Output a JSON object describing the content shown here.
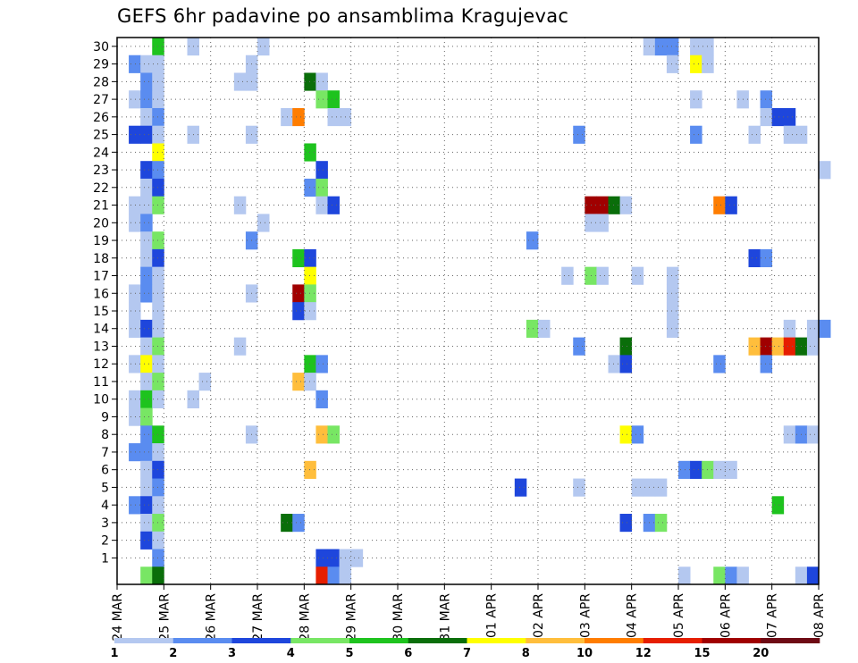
{
  "chart_data": {
    "type": "heatmap",
    "title": "GEFS 6hr padavine po ansamblima Kragujevac",
    "xlabel": "",
    "ylabel": "",
    "x_tick_labels": [
      "24 MAR",
      "25 MAR",
      "26 MAR",
      "27 MAR",
      "28 MAR",
      "29 MAR",
      "30 MAR",
      "31 MAR",
      "01 APR",
      "02 APR",
      "03 APR",
      "04 APR",
      "05 APR",
      "06 APR",
      "07 APR",
      "08 APR"
    ],
    "x_range_steps": [
      0,
      60
    ],
    "y_tick_labels": [
      "1",
      "2",
      "3",
      "4",
      "5",
      "6",
      "7",
      "8",
      "9",
      "10",
      "11",
      "12",
      "13",
      "14",
      "15",
      "16",
      "17",
      "18",
      "19",
      "20",
      "21",
      "22",
      "23",
      "24",
      "25",
      "26",
      "27",
      "28",
      "29",
      "30"
    ],
    "y_range": [
      -0.5,
      30.5
    ],
    "grid": true,
    "colorbar": {
      "tick_labels": [
        "1",
        "2",
        "3",
        "4",
        "5",
        "6",
        "7",
        "8",
        "10",
        "12",
        "15",
        "20"
      ],
      "colors": [
        "#b4c8f0",
        "#5a8cf0",
        "#1e46dc",
        "#78e664",
        "#1ec31e",
        "#0a6e0a",
        "#ffff00",
        "#ffbe3c",
        "#ff7d00",
        "#e61e00",
        "#a00000",
        "#6e0a14"
      ]
    },
    "cells": [
      [
        3,
        30,
        4
      ],
      [
        6,
        30,
        0
      ],
      [
        12,
        30,
        0
      ],
      [
        45,
        30,
        0
      ],
      [
        46,
        30,
        1
      ],
      [
        47,
        30,
        1
      ],
      [
        49,
        30,
        0
      ],
      [
        50,
        30,
        0
      ],
      [
        1,
        29,
        1
      ],
      [
        2,
        29,
        0
      ],
      [
        3,
        29,
        0
      ],
      [
        11,
        29,
        0
      ],
      [
        47,
        29,
        0
      ],
      [
        49,
        29,
        6
      ],
      [
        50,
        29,
        0
      ],
      [
        2,
        28,
        1
      ],
      [
        3,
        28,
        0
      ],
      [
        10,
        28,
        0
      ],
      [
        11,
        28,
        0
      ],
      [
        16,
        28,
        5
      ],
      [
        17,
        28,
        0
      ],
      [
        1,
        27,
        0
      ],
      [
        2,
        27,
        1
      ],
      [
        3,
        27,
        0
      ],
      [
        17,
        27,
        3
      ],
      [
        18,
        27,
        4
      ],
      [
        49,
        27,
        0
      ],
      [
        53,
        27,
        0
      ],
      [
        55,
        27,
        1
      ],
      [
        2,
        26,
        0
      ],
      [
        3,
        26,
        1
      ],
      [
        14,
        26,
        0
      ],
      [
        15,
        26,
        8
      ],
      [
        18,
        26,
        0
      ],
      [
        19,
        26,
        0
      ],
      [
        55,
        26,
        0
      ],
      [
        56,
        26,
        2
      ],
      [
        57,
        26,
        2
      ],
      [
        1,
        25,
        2
      ],
      [
        2,
        25,
        2
      ],
      [
        3,
        25,
        0
      ],
      [
        6,
        25,
        0
      ],
      [
        11,
        25,
        0
      ],
      [
        39,
        25,
        1
      ],
      [
        49,
        25,
        1
      ],
      [
        54,
        25,
        0
      ],
      [
        57,
        25,
        0
      ],
      [
        58,
        25,
        0
      ],
      [
        3,
        24,
        6
      ],
      [
        16,
        24,
        4
      ],
      [
        2,
        23,
        2
      ],
      [
        3,
        23,
        1
      ],
      [
        17,
        23,
        2
      ],
      [
        60,
        23,
        0
      ],
      [
        2,
        22,
        0
      ],
      [
        3,
        22,
        2
      ],
      [
        16,
        22,
        1
      ],
      [
        17,
        22,
        3
      ],
      [
        1,
        21,
        0
      ],
      [
        2,
        21,
        0
      ],
      [
        3,
        21,
        3
      ],
      [
        10,
        21,
        0
      ],
      [
        17,
        21,
        0
      ],
      [
        18,
        21,
        2
      ],
      [
        40,
        21,
        10
      ],
      [
        41,
        21,
        10
      ],
      [
        42,
        21,
        5
      ],
      [
        43,
        21,
        0
      ],
      [
        51,
        21,
        8
      ],
      [
        52,
        21,
        2
      ],
      [
        1,
        20,
        0
      ],
      [
        2,
        20,
        1
      ],
      [
        12,
        20,
        0
      ],
      [
        40,
        20,
        0
      ],
      [
        41,
        20,
        0
      ],
      [
        2,
        19,
        0
      ],
      [
        3,
        19,
        3
      ],
      [
        11,
        19,
        1
      ],
      [
        35,
        19,
        1
      ],
      [
        2,
        18,
        0
      ],
      [
        3,
        18,
        2
      ],
      [
        15,
        18,
        4
      ],
      [
        16,
        18,
        2
      ],
      [
        54,
        18,
        2
      ],
      [
        55,
        18,
        1
      ],
      [
        2,
        17,
        1
      ],
      [
        3,
        17,
        0
      ],
      [
        16,
        17,
        6
      ],
      [
        38,
        17,
        0
      ],
      [
        40,
        17,
        3
      ],
      [
        41,
        17,
        0
      ],
      [
        44,
        17,
        0
      ],
      [
        47,
        17,
        0
      ],
      [
        1,
        16,
        0
      ],
      [
        2,
        16,
        1
      ],
      [
        3,
        16,
        0
      ],
      [
        11,
        16,
        0
      ],
      [
        15,
        16,
        10
      ],
      [
        16,
        16,
        3
      ],
      [
        47,
        16,
        0
      ],
      [
        1,
        15,
        0
      ],
      [
        3,
        15,
        0
      ],
      [
        15,
        15,
        2
      ],
      [
        16,
        15,
        0
      ],
      [
        47,
        15,
        0
      ],
      [
        1,
        14,
        0
      ],
      [
        2,
        14,
        2
      ],
      [
        3,
        14,
        0
      ],
      [
        35,
        14,
        3
      ],
      [
        36,
        14,
        0
      ],
      [
        47,
        14,
        0
      ],
      [
        57,
        14,
        0
      ],
      [
        59,
        14,
        0
      ],
      [
        60,
        14,
        1
      ],
      [
        2,
        13,
        0
      ],
      [
        3,
        13,
        3
      ],
      [
        10,
        13,
        0
      ],
      [
        39,
        13,
        1
      ],
      [
        43,
        13,
        5
      ],
      [
        54,
        13,
        7
      ],
      [
        55,
        13,
        10
      ],
      [
        56,
        13,
        7
      ],
      [
        57,
        13,
        9
      ],
      [
        58,
        13,
        5
      ],
      [
        59,
        13,
        0
      ],
      [
        1,
        12,
        0
      ],
      [
        2,
        12,
        6
      ],
      [
        3,
        12,
        0
      ],
      [
        16,
        12,
        4
      ],
      [
        17,
        12,
        1
      ],
      [
        42,
        12,
        0
      ],
      [
        43,
        12,
        2
      ],
      [
        51,
        12,
        1
      ],
      [
        55,
        12,
        1
      ],
      [
        2,
        11,
        0
      ],
      [
        3,
        11,
        3
      ],
      [
        7,
        11,
        0
      ],
      [
        15,
        11,
        7
      ],
      [
        16,
        11,
        0
      ],
      [
        1,
        10,
        0
      ],
      [
        2,
        10,
        4
      ],
      [
        3,
        10,
        0
      ],
      [
        6,
        10,
        0
      ],
      [
        17,
        10,
        1
      ],
      [
        1,
        9,
        0
      ],
      [
        2,
        9,
        3
      ],
      [
        2,
        8,
        1
      ],
      [
        3,
        8,
        4
      ],
      [
        11,
        8,
        0
      ],
      [
        17,
        8,
        7
      ],
      [
        18,
        8,
        3
      ],
      [
        43,
        8,
        6
      ],
      [
        44,
        8,
        1
      ],
      [
        57,
        8,
        0
      ],
      [
        58,
        8,
        1
      ],
      [
        59,
        8,
        0
      ],
      [
        1,
        7,
        1
      ],
      [
        2,
        7,
        1
      ],
      [
        3,
        7,
        0
      ],
      [
        2,
        6,
        0
      ],
      [
        3,
        6,
        2
      ],
      [
        16,
        6,
        7
      ],
      [
        48,
        6,
        1
      ],
      [
        49,
        6,
        2
      ],
      [
        50,
        6,
        3
      ],
      [
        51,
        6,
        0
      ],
      [
        52,
        6,
        0
      ],
      [
        2,
        5,
        0
      ],
      [
        3,
        5,
        1
      ],
      [
        34,
        5,
        2
      ],
      [
        39,
        5,
        0
      ],
      [
        44,
        5,
        0
      ],
      [
        45,
        5,
        0
      ],
      [
        46,
        5,
        0
      ],
      [
        1,
        4,
        1
      ],
      [
        2,
        4,
        2
      ],
      [
        3,
        4,
        0
      ],
      [
        56,
        4,
        4
      ],
      [
        2,
        3,
        0
      ],
      [
        3,
        3,
        3
      ],
      [
        14,
        3,
        5
      ],
      [
        15,
        3,
        1
      ],
      [
        43,
        3,
        2
      ],
      [
        45,
        3,
        1
      ],
      [
        46,
        3,
        3
      ],
      [
        2,
        2,
        2
      ],
      [
        3,
        2,
        0
      ],
      [
        3,
        1,
        1
      ],
      [
        17,
        1,
        2
      ],
      [
        18,
        1,
        2
      ],
      [
        19,
        1,
        0
      ],
      [
        20,
        1,
        0
      ],
      [
        2,
        0,
        3
      ],
      [
        3,
        0,
        5
      ],
      [
        17,
        0,
        9
      ],
      [
        18,
        0,
        1
      ],
      [
        19,
        0,
        0
      ],
      [
        48,
        0,
        0
      ],
      [
        51,
        0,
        3
      ],
      [
        52,
        0,
        1
      ],
      [
        53,
        0,
        0
      ],
      [
        58,
        0,
        0
      ],
      [
        59,
        0,
        2
      ]
    ]
  }
}
